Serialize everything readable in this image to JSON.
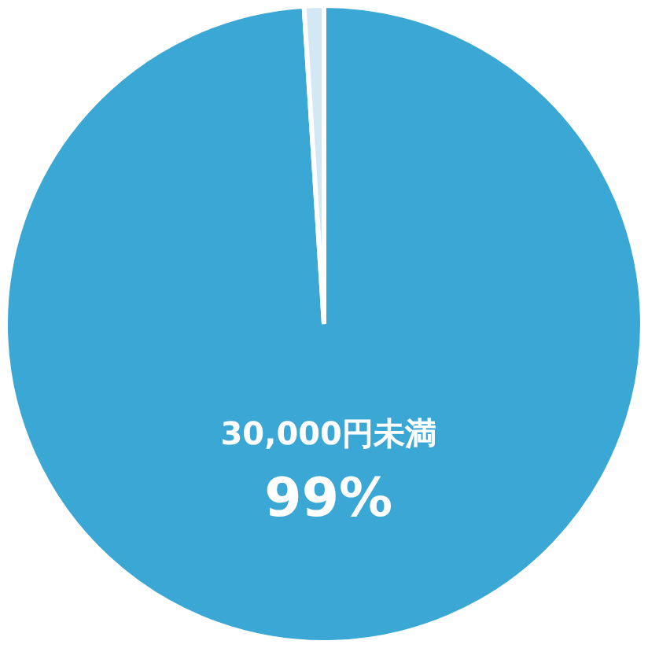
{
  "chart_data": {
    "type": "pie",
    "categories": [
      "30,000円未満",
      null
    ],
    "values": [
      99,
      1
    ],
    "colors": [
      "#3aa7d4",
      "#d3e8f2"
    ],
    "value_labels": [
      "99%",
      null
    ],
    "legend": false
  }
}
